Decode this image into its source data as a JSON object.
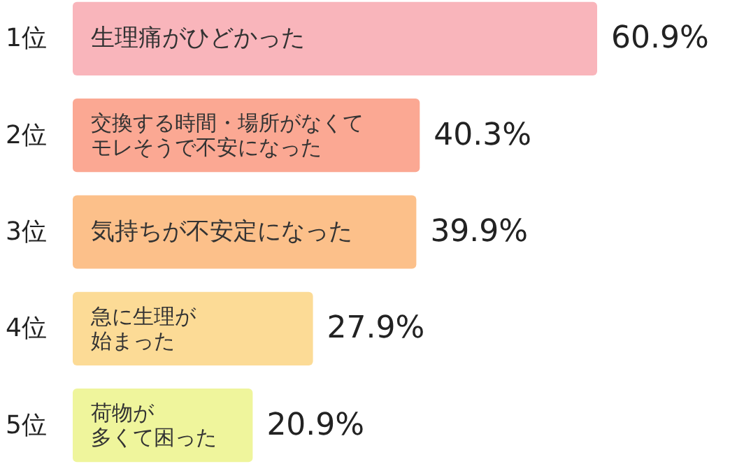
{
  "chart_data": {
    "type": "bar",
    "orientation": "horizontal",
    "categories": [
      "1位",
      "2位",
      "3位",
      "4位",
      "5位"
    ],
    "values": [
      60.9,
      40.3,
      39.9,
      27.9,
      20.9
    ],
    "colors": [
      "#f9b5bb",
      "#fba893",
      "#fcc08a",
      "#fcdb96",
      "#eff59c"
    ],
    "value_labels": [
      "60.9%",
      "40.3%",
      "39.9%",
      "27.9%",
      "20.9%"
    ],
    "annotations": [
      {
        "text": "生理痛がひどかった",
        "y": "1位"
      },
      {
        "text": "交換する時間・場所がなくて",
        "y": "2位"
      },
      {
        "text": "モレそうで不安になった",
        "y": "2位"
      },
      {
        "text": "気持ちが不安定になった",
        "y": "3位"
      },
      {
        "text": "急に生理が",
        "y": "4位"
      },
      {
        "text": "始まった",
        "y": "4位"
      },
      {
        "text": "荷物が",
        "y": "5位"
      },
      {
        "text": "多くて困った",
        "y": "5位"
      }
    ]
  }
}
